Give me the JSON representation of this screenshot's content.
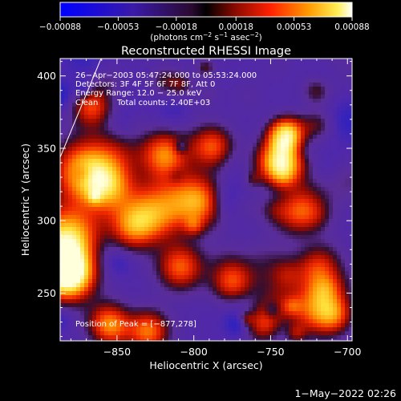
{
  "chart_data": {
    "type": "heatmap",
    "title": "Reconstructed RHESSI Image",
    "xlabel": "Heliocentric X (arcsec)",
    "ylabel": "Heliocentric Y (arcsec)",
    "xlim": [
      -887,
      -697
    ],
    "ylim": [
      217,
      412
    ],
    "x_ticks": [
      -850,
      -800,
      -750,
      -700
    ],
    "x_tick_labels": [
      "−850",
      "−800",
      "−750",
      "−700"
    ],
    "y_ticks": [
      250,
      300,
      350,
      400
    ],
    "y_tick_labels": [
      "250",
      "300",
      "350",
      "400"
    ],
    "colorbar": {
      "range": [
        -0.00088,
        0.00088
      ],
      "ticks": [
        -0.00088,
        -0.00053,
        -0.00018,
        0.00018,
        0.00053,
        0.00088
      ],
      "tick_labels": [
        "−0.00088",
        "−0.00053",
        "−0.00018",
        "0.00018",
        "0.00053",
        "0.00088"
      ],
      "unit_label_parts": [
        "(photons cm",
        "−2",
        " s",
        "−1",
        " asec",
        "−2",
        ")"
      ]
    },
    "annotations": [
      "26−Apr−2003 05:47:24.000 to 05:53:24.000",
      "Detectors: 3F 4F 5F 6F 7F 8F, Att 0",
      "Energy Range: 12.0 − 25.0 keV",
      "Clean",
      "Total counts: 2.40E+03",
      "Position of Peak = [−877,278]"
    ],
    "peak": {
      "x": -877,
      "y": 278
    },
    "grid": false
  },
  "footer": {
    "date": "1−May−2022 02:26"
  }
}
